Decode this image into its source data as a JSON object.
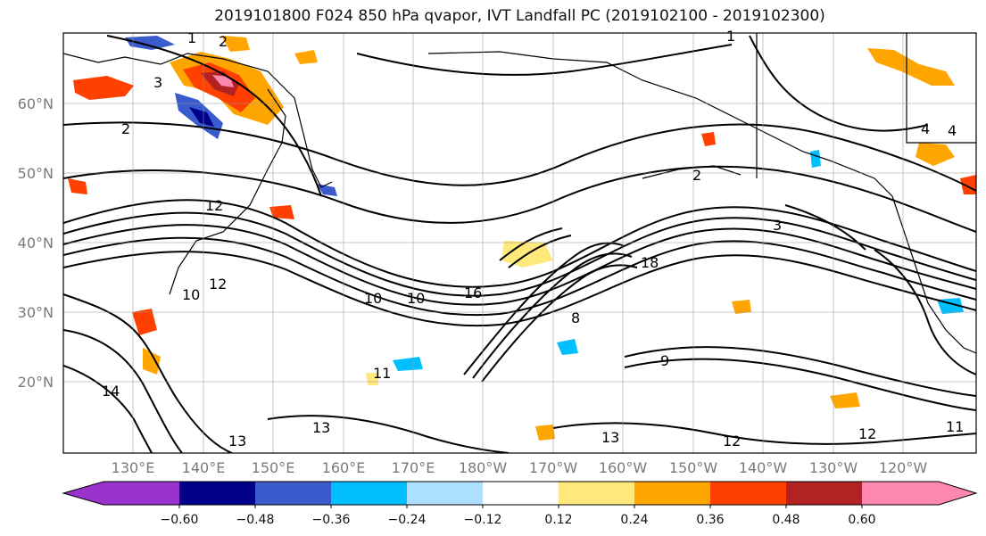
{
  "title": "2019101800 F024 850 hPa qvapor, IVT Landfall PC (2019102100 - 2019102300)",
  "lat_labels": [
    "60°N",
    "50°N",
    "40°N",
    "30°N",
    "20°N"
  ],
  "lon_labels": [
    "130°E",
    "140°E",
    "150°E",
    "160°E",
    "170°E",
    "180°W",
    "170°W",
    "160°W",
    "150°W",
    "140°W",
    "130°W",
    "120°W"
  ],
  "colorbar": {
    "ticks": [
      "−0.60",
      "−0.48",
      "−0.36",
      "−0.24",
      "−0.12",
      "0.12",
      "0.24",
      "0.36",
      "0.48",
      "0.60"
    ],
    "colors": [
      "#9932CC",
      "#00008B",
      "#3A5BCB",
      "#00BFFF",
      "#ADE0FF",
      "#FFFFFF",
      "#FFE87C",
      "#FFA500",
      "#FF4000",
      "#B22222",
      "#FF88B0"
    ]
  },
  "contour_labels": [
    "1",
    "2",
    "2",
    "3",
    "2",
    "4",
    "12",
    "10",
    "10",
    "16",
    "18",
    "10",
    "12",
    "14",
    "12",
    "13",
    "13",
    "11",
    "9",
    "8",
    "12",
    "13",
    "11",
    "1",
    "3",
    "4"
  ]
}
